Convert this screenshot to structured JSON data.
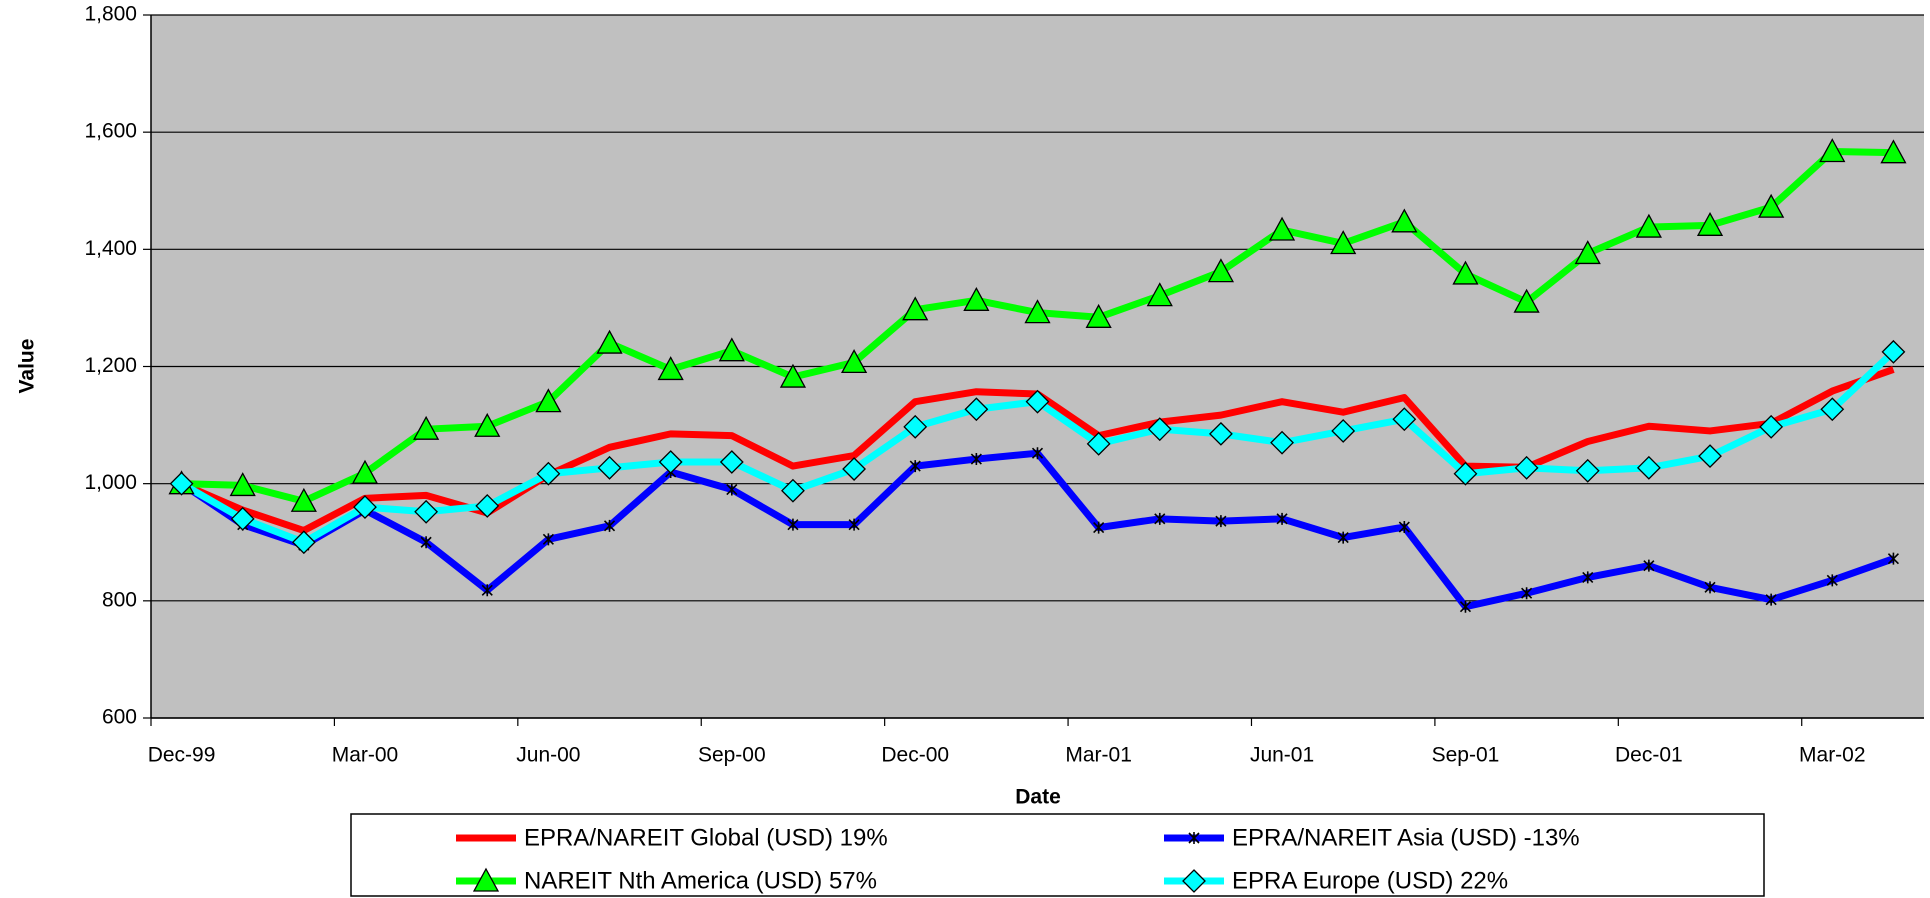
{
  "chart_data": {
    "type": "line",
    "x_label": "Date",
    "y_label": "Value",
    "categories": [
      "Dec-99",
      null,
      null,
      "Mar-00",
      null,
      null,
      "Jun-00",
      null,
      null,
      "Sep-00",
      null,
      null,
      "Dec-00",
      null,
      null,
      "Mar-01",
      null,
      null,
      "Jun-01",
      null,
      null,
      "Sep-01",
      null,
      null,
      "Dec-01",
      null,
      null,
      "Mar-02",
      null
    ],
    "series": [
      {
        "name": "EPRA/NAREIT Global (USD) 19%",
        "color": "#ff0000",
        "marker": "none",
        "values": [
          1000,
          955,
          920,
          975,
          980,
          950,
          1015,
          1062,
          1085,
          1082,
          1030,
          1048,
          1140,
          1157,
          1153,
          1082,
          1105,
          1117,
          1140,
          1122,
          1147,
          1030,
          1028,
          1072,
          1098,
          1090,
          1103,
          1158,
          1195
        ]
      },
      {
        "name": "EPRA/NAREIT Asia (USD) -13%",
        "color": "#0000ff",
        "marker": "star",
        "values": [
          1000,
          930,
          895,
          955,
          900,
          818,
          905,
          928,
          1020,
          990,
          930,
          930,
          1030,
          1042,
          1052,
          925,
          940,
          936,
          940,
          908,
          926,
          790,
          813,
          840,
          860,
          823,
          802,
          835,
          872
        ]
      },
      {
        "name": "NAREIT Nth America (USD) 57%",
        "color": "#00ff00",
        "marker": "triangle",
        "values": [
          1000,
          997,
          970,
          1018,
          1093,
          1098,
          1140,
          1240,
          1195,
          1227,
          1182,
          1207,
          1297,
          1313,
          1292,
          1284,
          1321,
          1362,
          1433,
          1410,
          1447,
          1358,
          1310,
          1393,
          1438,
          1441,
          1472,
          1567,
          1565
        ]
      },
      {
        "name": "EPRA Europe (USD) 22%",
        "color": "#00ffff",
        "marker": "diamond",
        "values": [
          1000,
          940,
          900,
          960,
          952,
          962,
          1017,
          1027,
          1037,
          1037,
          988,
          1025,
          1097,
          1127,
          1140,
          1068,
          1093,
          1085,
          1070,
          1090,
          1110,
          1017,
          1027,
          1022,
          1027,
          1047,
          1097,
          1127,
          1225
        ]
      }
    ],
    "ylim": [
      600,
      1800
    ],
    "yticks": [
      600,
      800,
      {
        "value": 1000,
        "label": "1,000"
      },
      {
        "value": 1200,
        "label": "1,200"
      },
      {
        "value": 1400,
        "label": "1,400"
      },
      {
        "value": 1600,
        "label": "1,600"
      },
      {
        "value": 1800,
        "label": "1,800"
      }
    ],
    "grid": true,
    "plot_background": "#c0c0c0"
  }
}
